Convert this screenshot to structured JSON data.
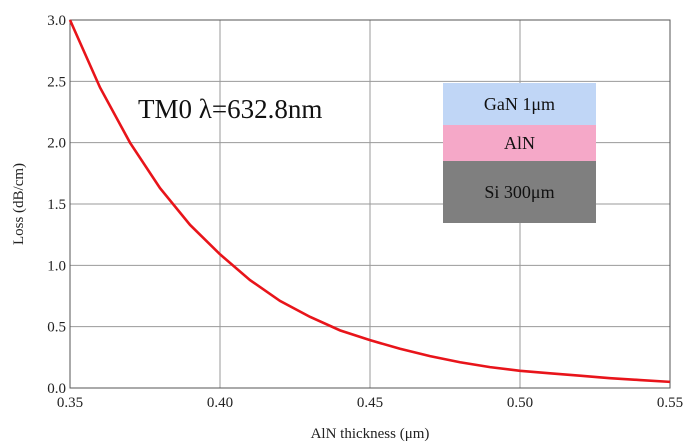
{
  "chart_data": {
    "type": "line",
    "xlabel": "AlN thickness (μm)",
    "ylabel": "Loss (dB/cm)",
    "xlim": [
      0.35,
      0.55
    ],
    "ylim": [
      0.0,
      3.0
    ],
    "x_ticks": [
      "0.35",
      "0.40",
      "0.45",
      "0.50",
      "0.55"
    ],
    "y_ticks": [
      "0.0",
      "0.5",
      "1.0",
      "1.5",
      "2.0",
      "2.5",
      "3.0"
    ],
    "grid": true,
    "annotation": "TM0 λ=632.8nm",
    "series": [
      {
        "color": "#e8141a",
        "x": [
          0.35,
          0.36,
          0.37,
          0.38,
          0.39,
          0.4,
          0.41,
          0.42,
          0.43,
          0.44,
          0.45,
          0.46,
          0.47,
          0.48,
          0.49,
          0.5,
          0.51,
          0.52,
          0.53,
          0.54,
          0.55
        ],
        "y": [
          3.0,
          2.45,
          2.0,
          1.63,
          1.33,
          1.09,
          0.88,
          0.71,
          0.58,
          0.47,
          0.39,
          0.32,
          0.26,
          0.21,
          0.17,
          0.14,
          0.12,
          0.1,
          0.08,
          0.065,
          0.05
        ]
      }
    ],
    "inset_layers": [
      {
        "label": "GaN 1μm",
        "color": "#c0d6f6"
      },
      {
        "label": "AlN",
        "color": "#f5a8c8"
      },
      {
        "label": "Si 300μm",
        "color": "#7f7f7f"
      }
    ]
  }
}
